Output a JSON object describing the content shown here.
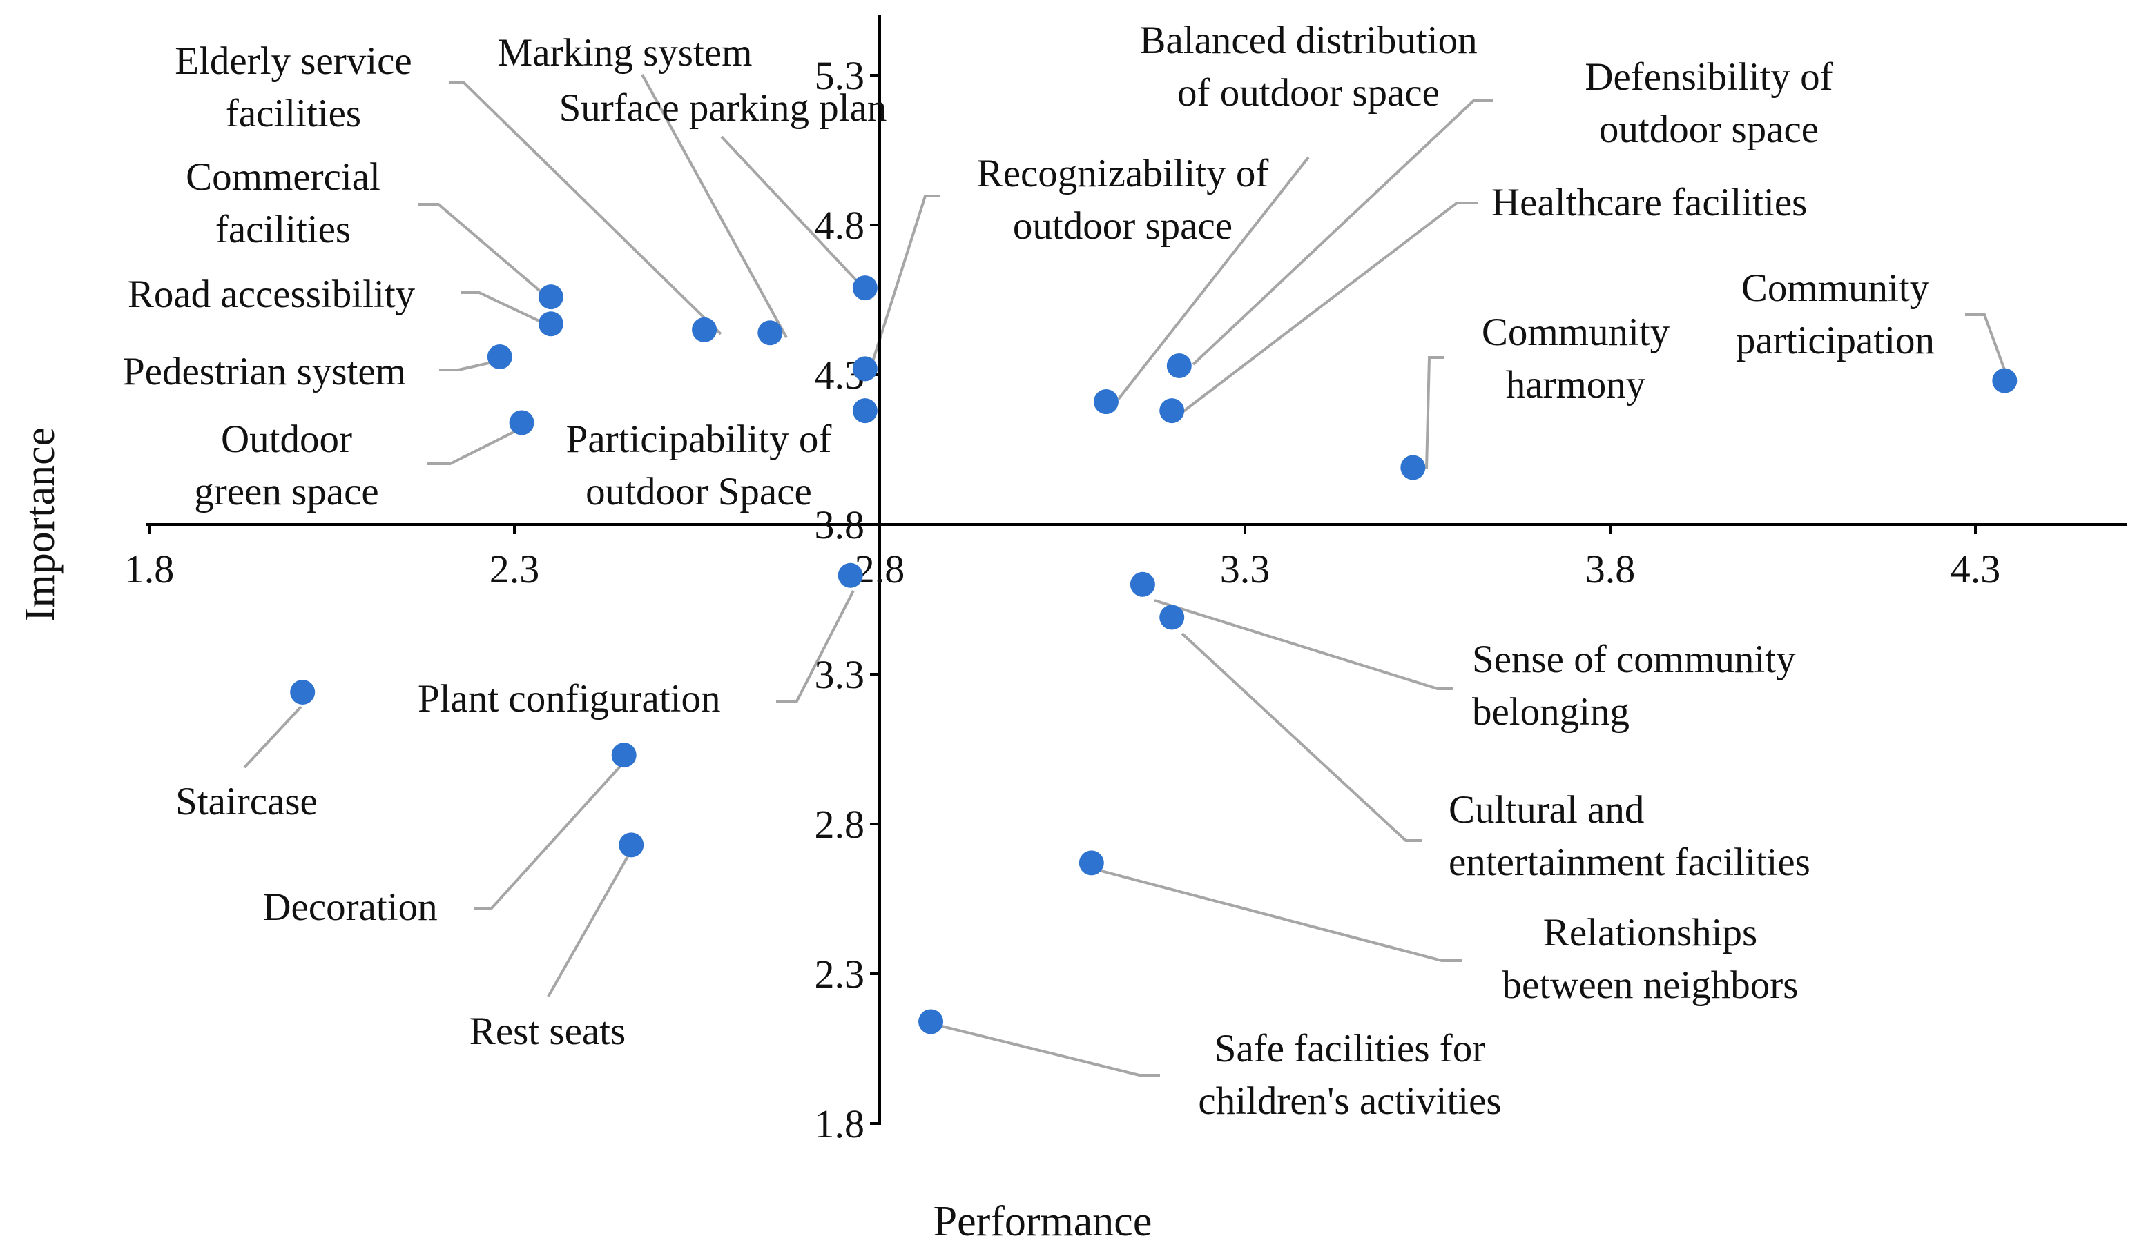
{
  "chart_data": {
    "type": "scatter",
    "title": "",
    "xlabel": "Performance",
    "ylabel": "Importance",
    "xlim": [
      1.8,
      4.5
    ],
    "ylim": [
      1.8,
      5.5
    ],
    "x_axis_crosses_y_at": 3.8,
    "y_axis_crosses_x_at": 2.8,
    "x_ticks": [
      1.8,
      2.3,
      2.8,
      3.3,
      3.8,
      4.3
    ],
    "y_ticks": [
      1.8,
      2.3,
      2.8,
      3.3,
      3.8,
      4.3,
      4.8,
      5.3
    ],
    "tick_labels_x": [
      "1.8",
      "2.3",
      "2.8",
      "3.3",
      "3.8",
      "4.3"
    ],
    "tick_labels_y": [
      "1.8",
      "2.3",
      "2.8",
      "3.3",
      "3.8",
      "4.3",
      "4.8",
      "5.3"
    ],
    "point_color": "#2e73cf",
    "leader_color": "#a6a6a6",
    "points": [
      {
        "label": "Elderly service facilities",
        "lines": [
          "Elderly service",
          "facilities"
        ],
        "x": 2.56,
        "y": 4.45
      },
      {
        "label": "Marking system",
        "lines": [
          "Marking system"
        ],
        "x": 2.65,
        "y": 4.44
      },
      {
        "label": "Surface parking plan",
        "lines": [
          "Surface parking plan"
        ],
        "x": 2.78,
        "y": 4.59
      },
      {
        "label": "Commercial facilities",
        "lines": [
          "Commercial",
          "facilities"
        ],
        "x": 2.35,
        "y": 4.56
      },
      {
        "label": "Road accessibility",
        "lines": [
          "Road accessibility"
        ],
        "x": 2.35,
        "y": 4.47
      },
      {
        "label": "Pedestrian system",
        "lines": [
          "Pedestrian system"
        ],
        "x": 2.28,
        "y": 4.36
      },
      {
        "label": "Outdoor green space",
        "lines": [
          "Outdoor",
          "green space"
        ],
        "x": 2.31,
        "y": 4.14
      },
      {
        "label": "Recognizability of outdoor space",
        "lines": [
          "Recognizability of",
          "outdoor space"
        ],
        "x": 2.78,
        "y": 4.32
      },
      {
        "label": "Participability of outdoor Space",
        "lines": [
          "Participability of",
          "outdoor Space"
        ],
        "x": 2.78,
        "y": 4.18
      },
      {
        "label": "Balanced distribution of outdoor space",
        "lines": [
          "Balanced distribution",
          "of outdoor space"
        ],
        "x": 3.11,
        "y": 4.21
      },
      {
        "label": "Defensibility of outdoor space",
        "lines": [
          "Defensibility of",
          "outdoor space"
        ],
        "x": 3.21,
        "y": 4.33
      },
      {
        "label": "Healthcare facilities",
        "lines": [
          "Healthcare facilities"
        ],
        "x": 3.2,
        "y": 4.18
      },
      {
        "label": "Community harmony",
        "lines": [
          "Community",
          "harmony"
        ],
        "x": 3.53,
        "y": 3.99
      },
      {
        "label": "Community participation",
        "lines": [
          "Community",
          "participation"
        ],
        "x": 4.34,
        "y": 4.28
      },
      {
        "label": "Plant configuration",
        "lines": [
          "Plant configuration"
        ],
        "x": 2.76,
        "y": 3.63
      },
      {
        "label": "Sense of community belonging",
        "lines": [
          "Sense of community",
          "belonging"
        ],
        "x": 3.16,
        "y": 3.6
      },
      {
        "label": "Cultural and entertainment facilities",
        "lines": [
          "Cultural and",
          "entertainment facilities"
        ],
        "x": 3.2,
        "y": 3.49
      },
      {
        "label": "Staircase",
        "lines": [
          "Staircase"
        ],
        "x": 2.01,
        "y": 3.24
      },
      {
        "label": "Decoration",
        "lines": [
          "Decoration"
        ],
        "x": 2.45,
        "y": 3.03
      },
      {
        "label": "Rest seats",
        "lines": [
          "Rest seats"
        ],
        "x": 2.46,
        "y": 2.73
      },
      {
        "label": "Relationships between neighbors",
        "lines": [
          "Relationships",
          "between neighbors"
        ],
        "x": 3.09,
        "y": 2.67
      },
      {
        "label": "Safe facilities for children's activities",
        "lines": [
          "Safe facilities for",
          "children's activities"
        ],
        "x": 2.87,
        "y": 2.14
      }
    ]
  }
}
